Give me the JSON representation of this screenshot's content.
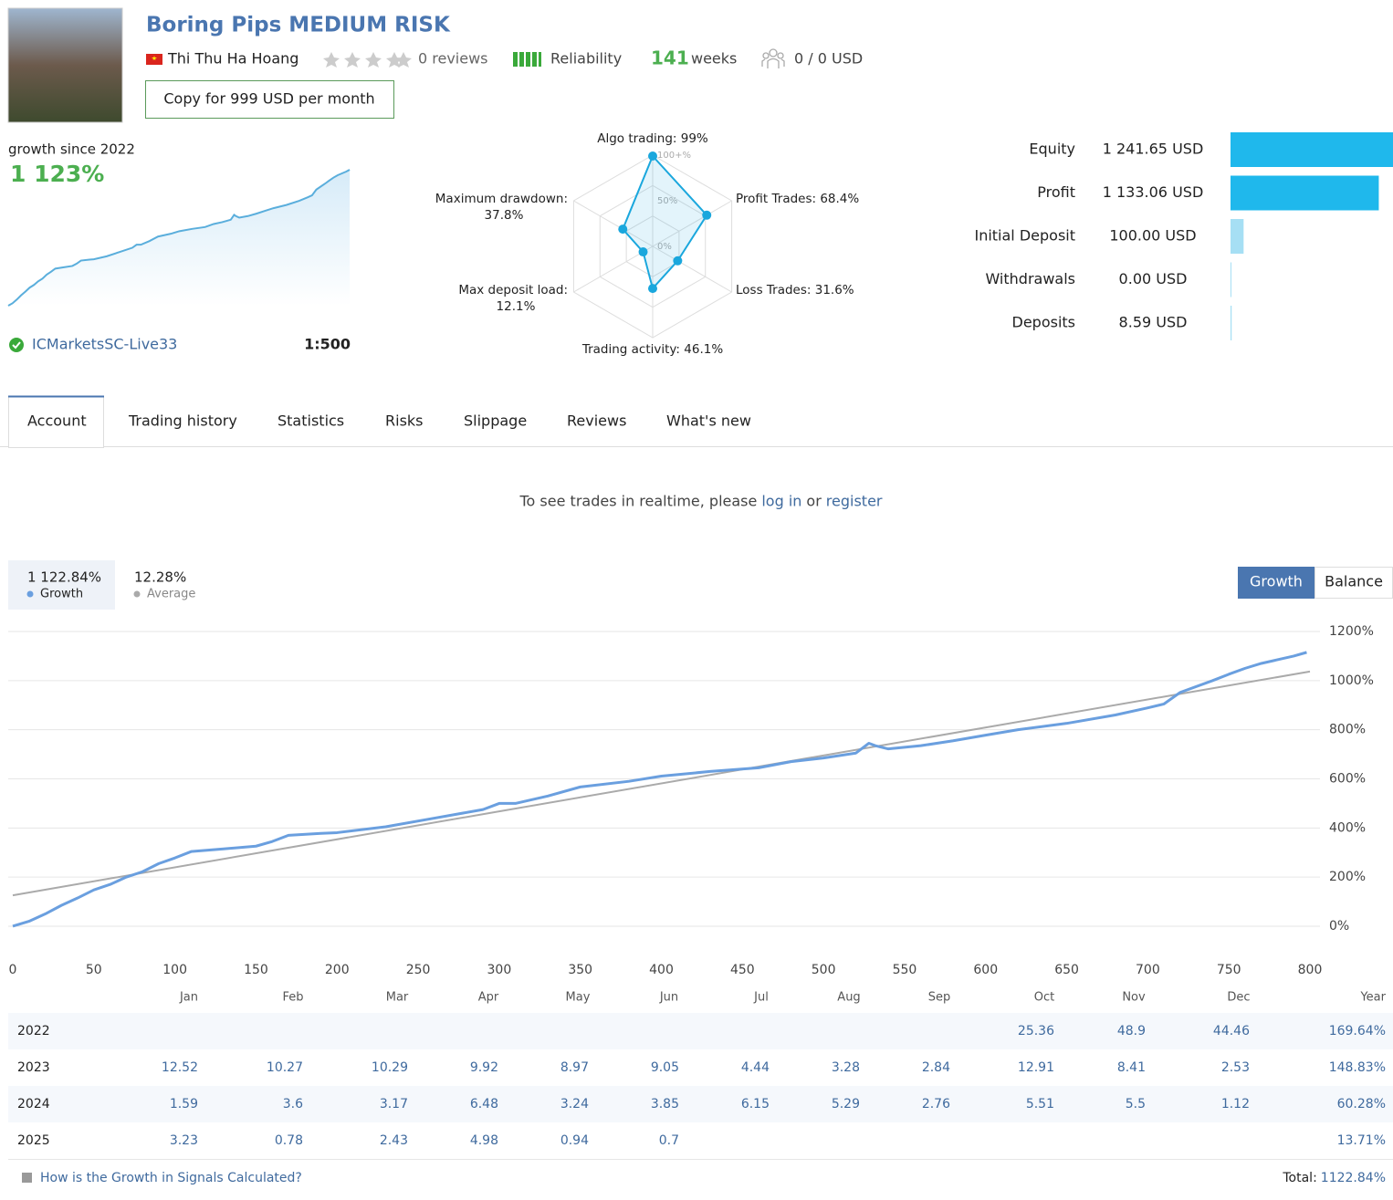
{
  "header": {
    "title": "Boring Pips MEDIUM RISK",
    "author": "Thi Thu Ha Hoang",
    "reviews": "0 reviews",
    "reliability": "Reliability",
    "weeks_value": "141",
    "weeks_label": "weeks",
    "subscribers": "0 / 0 USD",
    "copy_button": "Copy for 999 USD per month"
  },
  "summary": {
    "growth_label": "growth since 2022",
    "growth_value": "1 123%",
    "server": "ICMarketsSC-Live33",
    "leverage": "1:500"
  },
  "tabs": [
    "Account",
    "Trading history",
    "Statistics",
    "Risks",
    "Slippage",
    "Reviews",
    "What's new"
  ],
  "notice": {
    "text": "To see trades in realtime, please",
    "login": "log in",
    "or": "or",
    "register": "register"
  },
  "toggle": [
    "Growth",
    "Balance"
  ],
  "chart_data": [
    {
      "type": "radar",
      "categories": [
        "Algo trading:",
        "Profit Trades:",
        "Loss Trades:",
        "Trading activity:",
        "Max deposit load:",
        "Maximum drawdown:"
      ],
      "values": [
        99,
        68.4,
        31.6,
        46.1,
        12.1,
        37.8
      ],
      "value_labels": [
        "99%",
        "68.4%",
        "31.6%",
        "46.1%",
        "12.1%",
        "37.8%"
      ],
      "rlim": [
        0,
        100
      ],
      "rticks": [
        {
          "value": 0,
          "label": "0%"
        },
        {
          "value": 50,
          "label": "50%"
        },
        {
          "value": 100,
          "label": "100+%"
        }
      ],
      "color": "#1aa7dd"
    },
    {
      "type": "hbar",
      "categories": [
        "Equity",
        "Profit",
        "Initial Deposit",
        "Withdrawals",
        "Deposits"
      ],
      "values": [
        1241.65,
        1133.06,
        100,
        0,
        8.59
      ],
      "value_labels": [
        "1 241.65 USD",
        "1 133.06 USD",
        "100.00 USD",
        "0.00 USD",
        "8.59 USD"
      ],
      "colors": [
        "#1fb8ec",
        "#1fb8ec",
        "#a6dff4",
        "#a6dff4",
        "#a6dff4"
      ],
      "xlim": [
        0,
        1241.65
      ]
    },
    {
      "type": "line",
      "xlim": [
        0,
        800
      ],
      "xticks": [
        0,
        50,
        100,
        150,
        200,
        250,
        300,
        350,
        400,
        450,
        500,
        550,
        600,
        650,
        700,
        750,
        800
      ],
      "ylim": [
        -110,
        1200
      ],
      "yticks": [
        {
          "value": 0,
          "label": "0%"
        },
        {
          "value": 200,
          "label": "200%"
        },
        {
          "value": 400,
          "label": "400%"
        },
        {
          "value": 600,
          "label": "600%"
        },
        {
          "value": 800,
          "label": "800%"
        },
        {
          "value": 1000,
          "label": "1000%"
        },
        {
          "value": 1200,
          "label": "1200%"
        }
      ],
      "grid": true,
      "legend_values": [
        "1 122.84%",
        "12.28%"
      ],
      "series": [
        {
          "name": "Growth",
          "color": "#6a9fdf",
          "x": [
            0,
            10,
            20,
            30,
            40,
            50,
            60,
            70,
            80,
            90,
            100,
            110,
            130,
            150,
            160,
            170,
            190,
            200,
            230,
            260,
            290,
            300,
            310,
            330,
            350,
            380,
            400,
            430,
            460,
            480,
            500,
            520,
            528,
            532,
            540,
            560,
            580,
            600,
            620,
            650,
            680,
            700,
            710,
            720,
            740,
            750,
            760,
            770,
            780,
            790,
            798
          ],
          "values": [
            0,
            20,
            50,
            85,
            115,
            148,
            170,
            200,
            222,
            255,
            278,
            304,
            315,
            326,
            345,
            370,
            378,
            381,
            405,
            440,
            475,
            500,
            500,
            530,
            567,
            590,
            611,
            630,
            645,
            670,
            685,
            705,
            745,
            735,
            722,
            735,
            755,
            778,
            800,
            826,
            860,
            889,
            905,
            952,
            1000,
            1026,
            1050,
            1070,
            1085,
            1100,
            1115
          ]
        },
        {
          "name": "Average",
          "color": "#aaaaaa",
          "x": [
            0,
            800
          ],
          "values": [
            126,
            1037
          ]
        }
      ]
    }
  ],
  "table": {
    "columns": [
      "Jan",
      "Feb",
      "Mar",
      "Apr",
      "May",
      "Jun",
      "Jul",
      "Aug",
      "Sep",
      "Oct",
      "Nov",
      "Dec"
    ],
    "year_column": "Year",
    "rows": [
      {
        "year": "2022",
        "months": [
          null,
          null,
          null,
          null,
          null,
          null,
          null,
          null,
          null,
          25.36,
          48.9,
          44.46
        ],
        "total": "169.64%"
      },
      {
        "year": "2023",
        "months": [
          12.52,
          10.27,
          10.29,
          9.92,
          8.97,
          9.05,
          4.44,
          3.28,
          2.84,
          12.91,
          8.41,
          2.53
        ],
        "total": "148.83%"
      },
      {
        "year": "2024",
        "months": [
          1.59,
          3.6,
          3.17,
          6.48,
          3.24,
          3.85,
          6.15,
          5.29,
          2.76,
          5.51,
          5.5,
          1.12
        ],
        "total": "60.28%"
      },
      {
        "year": "2025",
        "months": [
          3.23,
          0.78,
          2.43,
          4.98,
          0.94,
          0.7,
          null,
          null,
          null,
          null,
          null,
          null
        ],
        "total": "13.71%"
      }
    ]
  },
  "footer": {
    "help": "How is the Growth in Signals Calculated?",
    "total_label": "Total:",
    "total_value": "1122.84%"
  }
}
